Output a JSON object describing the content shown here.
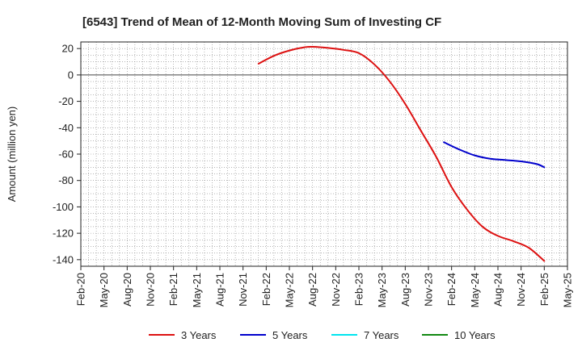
{
  "chart_data": {
    "type": "line",
    "title": "[6543]  Trend of Mean of 12-Month Moving Sum of Investing CF",
    "ylabel": "Amount (million yen)",
    "xlabel": "",
    "ylim": [
      -145,
      25
    ],
    "yticks": [
      20,
      0,
      -20,
      -40,
      -60,
      -80,
      -100,
      -120,
      -140
    ],
    "ytick_labels": [
      "20",
      "0",
      "-20",
      "-40",
      "-60",
      "-80",
      "-100",
      "-120",
      "-140"
    ],
    "x_start": "2020-02",
    "x_end": "2025-05",
    "xtick_labels": [
      "Feb-20",
      "May-20",
      "Aug-20",
      "Nov-20",
      "Feb-21",
      "May-21",
      "Aug-21",
      "Nov-21",
      "Feb-22",
      "May-22",
      "Aug-22",
      "Nov-22",
      "Feb-23",
      "May-23",
      "Aug-23",
      "Nov-23",
      "Feb-24",
      "May-24",
      "Aug-24",
      "Nov-24",
      "Feb-25",
      "May-25"
    ],
    "grid": true,
    "legend_position": "bottom",
    "series": [
      {
        "name": "3 Years",
        "color": "#dd1111",
        "points": [
          [
            "2022-01",
            8.5
          ],
          [
            "2022-03",
            14.5
          ],
          [
            "2022-05",
            18.5
          ],
          [
            "2022-07",
            21.0
          ],
          [
            "2022-08",
            21.3
          ],
          [
            "2022-10",
            20.5
          ],
          [
            "2022-12",
            19.0
          ],
          [
            "2023-02",
            16.5
          ],
          [
            "2023-04",
            8.0
          ],
          [
            "2023-06",
            -5.0
          ],
          [
            "2023-08",
            -22.0
          ],
          [
            "2023-10",
            -42.0
          ],
          [
            "2023-12",
            -62.0
          ],
          [
            "2024-02",
            -85.0
          ],
          [
            "2024-04",
            -102.0
          ],
          [
            "2024-06",
            -115.0
          ],
          [
            "2024-08",
            -122.0
          ],
          [
            "2024-10",
            -126.0
          ],
          [
            "2024-12",
            -131.0
          ],
          [
            "2025-02",
            -141.0
          ]
        ]
      },
      {
        "name": "5 Years",
        "color": "#0000cc",
        "points": [
          [
            "2024-01",
            -51.0
          ],
          [
            "2024-03",
            -56.5
          ],
          [
            "2024-05",
            -61.0
          ],
          [
            "2024-07",
            -63.5
          ],
          [
            "2024-09",
            -64.5
          ],
          [
            "2024-11",
            -65.5
          ],
          [
            "2025-01",
            -67.5
          ],
          [
            "2025-02",
            -70.0
          ]
        ]
      },
      {
        "name": "7 Years",
        "color": "#00e5ee",
        "points": []
      },
      {
        "name": "10 Years",
        "color": "#118811",
        "points": []
      }
    ]
  }
}
